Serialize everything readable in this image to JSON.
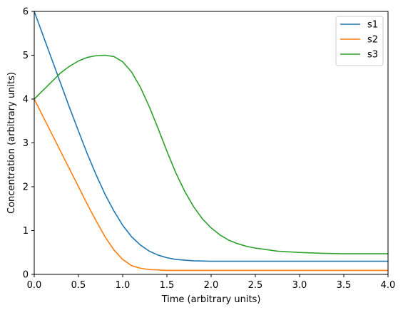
{
  "chart_data": {
    "type": "line",
    "title": "",
    "xlabel": "Time (arbitrary units)",
    "ylabel": "Concentration (arbitrary units)",
    "xlim": [
      0,
      4
    ],
    "ylim": [
      0,
      6
    ],
    "xticks": [
      "0.0",
      "0.5",
      "1.0",
      "1.5",
      "2.0",
      "2.5",
      "3.0",
      "3.5",
      "4.0"
    ],
    "yticks": [
      "0",
      "1",
      "2",
      "3",
      "4",
      "5",
      "6"
    ],
    "grid": false,
    "legend_position": "top-right",
    "series": [
      {
        "name": "s1",
        "color": "#1f77b4",
        "x": [
          0,
          0.1,
          0.2,
          0.3,
          0.4,
          0.5,
          0.6,
          0.7,
          0.8,
          0.9,
          1.0,
          1.1,
          1.2,
          1.3,
          1.4,
          1.5,
          1.6,
          1.8,
          2.0,
          2.5,
          3.0,
          3.5,
          4.0
        ],
        "y": [
          6.0,
          5.45,
          4.9,
          4.35,
          3.8,
          3.27,
          2.75,
          2.27,
          1.83,
          1.45,
          1.12,
          0.86,
          0.67,
          0.53,
          0.44,
          0.38,
          0.34,
          0.31,
          0.3,
          0.3,
          0.3,
          0.3,
          0.3
        ]
      },
      {
        "name": "s2",
        "color": "#ff7f0e",
        "x": [
          0,
          0.1,
          0.2,
          0.3,
          0.4,
          0.5,
          0.6,
          0.7,
          0.8,
          0.9,
          1.0,
          1.1,
          1.2,
          1.3,
          1.4,
          1.5,
          1.6,
          1.8,
          2.0,
          2.5,
          3.0,
          3.5,
          4.0
        ],
        "y": [
          4.0,
          3.6,
          3.2,
          2.8,
          2.4,
          2.0,
          1.6,
          1.22,
          0.86,
          0.56,
          0.34,
          0.2,
          0.14,
          0.11,
          0.1,
          0.09,
          0.09,
          0.09,
          0.09,
          0.09,
          0.09,
          0.09,
          0.09
        ]
      },
      {
        "name": "s3",
        "color": "#2ca02c",
        "x": [
          0,
          0.1,
          0.2,
          0.3,
          0.4,
          0.5,
          0.6,
          0.7,
          0.8,
          0.9,
          1.0,
          1.1,
          1.2,
          1.3,
          1.4,
          1.5,
          1.6,
          1.7,
          1.8,
          1.9,
          2.0,
          2.1,
          2.2,
          2.3,
          2.4,
          2.5,
          2.75,
          3.0,
          3.25,
          3.5,
          4.0
        ],
        "y": [
          4.0,
          4.2,
          4.4,
          4.6,
          4.75,
          4.87,
          4.95,
          4.99,
          5.0,
          4.97,
          4.85,
          4.62,
          4.27,
          3.83,
          3.33,
          2.81,
          2.32,
          1.9,
          1.55,
          1.27,
          1.06,
          0.9,
          0.78,
          0.7,
          0.64,
          0.6,
          0.53,
          0.5,
          0.48,
          0.47,
          0.47
        ]
      }
    ]
  }
}
